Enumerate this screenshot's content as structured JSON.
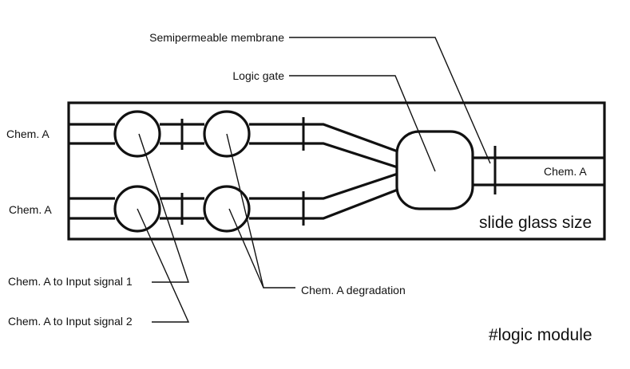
{
  "labels": {
    "semipermeable_membrane": "Semipermeable membrane",
    "logic_gate": "Logic gate",
    "input_top": "Chem. A",
    "input_bottom": "Chem. A",
    "output": "Chem. A",
    "slide_glass": "slide glass size",
    "input_signal_1": "Chem. A to Input signal 1",
    "input_signal_2": "Chem. A to Input signal 2",
    "degradation": "Chem. A degradation",
    "module_tag": "#logic module"
  },
  "colors": {
    "ink": "#111111",
    "background": "#ffffff"
  }
}
